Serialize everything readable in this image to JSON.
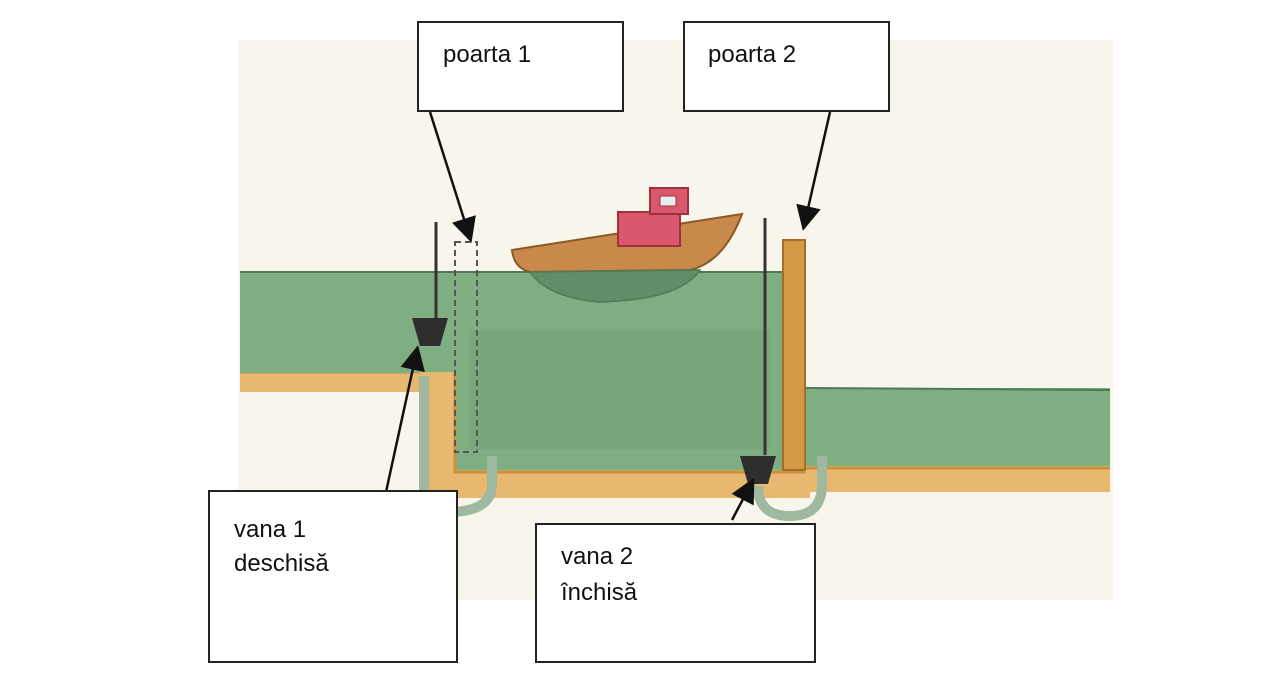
{
  "labels": {
    "gate1": "poarta 1",
    "gate2": "poarta 2",
    "valve1_line1": "vana 1",
    "valve1_line2": "deschisă",
    "valve2_line1": "vana 2",
    "valve2_line2": "închisă"
  },
  "colors": {
    "paper": "#f7f5ec",
    "water": "#7fae82",
    "water_dark": "#6a9a70",
    "ground": "#e8b870",
    "ground_edge": "#c8913c",
    "gate": "#d49a45",
    "boat_hull": "#c9894a",
    "boat_cabin": "#d9586b",
    "valve": "#2e2e2e",
    "pipe": "#9fb8a0"
  }
}
